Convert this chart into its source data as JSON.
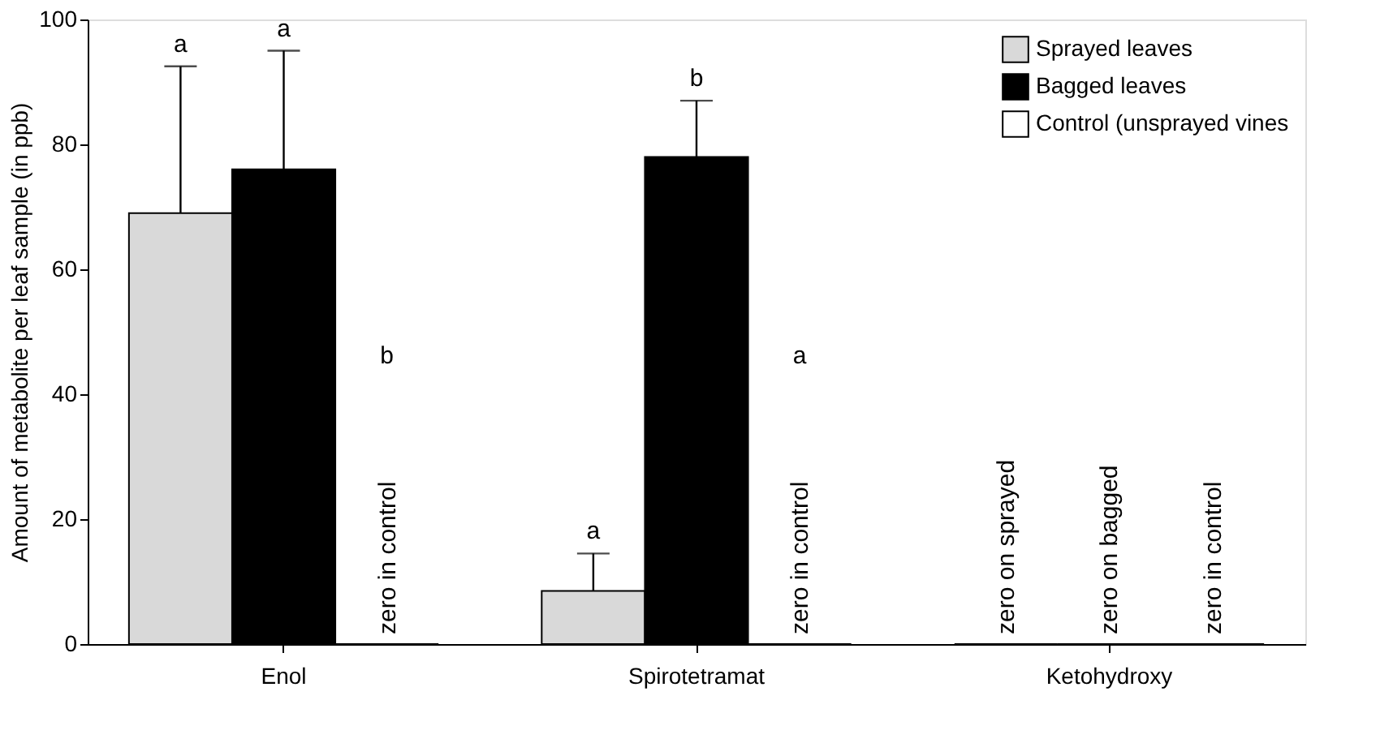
{
  "chart_data": {
    "type": "bar",
    "ylabel": "Amount of metabolite per leaf sample (in ppb)",
    "categories": [
      "Enol",
      "Spirotetramat",
      "Ketohydroxy"
    ],
    "series": [
      {
        "name": "Sprayed leaves",
        "color": "#d9d9d9",
        "values": [
          69,
          8.5,
          0
        ],
        "errors": [
          [
            69,
            92.5
          ],
          [
            8.5,
            14.5
          ],
          null
        ]
      },
      {
        "name": "Bagged leaves",
        "color": "#000000",
        "values": [
          76,
          78,
          0
        ],
        "errors": [
          [
            76,
            95
          ],
          [
            78,
            87
          ],
          null
        ]
      },
      {
        "name": "Control (unsprayed vines",
        "color": "#ffffff",
        "values": [
          0,
          0,
          0
        ]
      }
    ],
    "annotations": [
      "a",
      "a",
      "b",
      "a",
      "b",
      "a",
      "zero in control",
      "zero in control",
      "zero on sprayed",
      "zero on bagged",
      "zero in control"
    ],
    "ylim": [
      0,
      100
    ],
    "yticks": [
      0,
      20,
      40,
      60,
      80,
      100
    ],
    "grid": false,
    "legend": "top right"
  }
}
